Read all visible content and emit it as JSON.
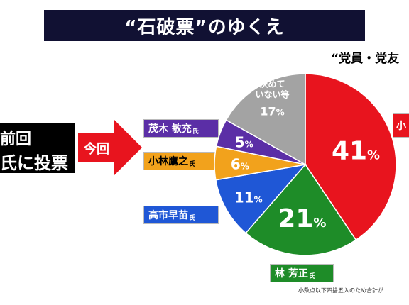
{
  "title": "“石破票”のゆくえ",
  "subtitle": "“党員・党友",
  "previous_vote": {
    "line1": "前回",
    "line2": "氏に投票"
  },
  "arrow_label": "今回",
  "candidate_labels": {
    "motegi": {
      "name": "茂木 敏充",
      "suffix": "氏"
    },
    "kobayashi": {
      "name": "小林鷹之",
      "suffix": "氏"
    },
    "takaichi": {
      "name": "高市早苗",
      "suffix": "氏"
    },
    "hayashi": {
      "name": "林 芳正",
      "suffix": "氏"
    },
    "koizumi": {
      "name": "小",
      "suffix": ""
    }
  },
  "footnote": "小数点以下四捨五入のため合計が",
  "colors": {
    "koizumi": "#e8141e",
    "hayashi": "#1e8c28",
    "takaichi": "#1f57d6",
    "kobayashi": "#f2a21c",
    "motegi": "#5b2ea6",
    "undecided": "#a3a3a3"
  },
  "chart_data": {
    "type": "pie",
    "title": "“石破票”のゆくえ",
    "slices": [
      {
        "key": "koizumi",
        "label": "小",
        "value": 41,
        "display": "41",
        "unit": "%"
      },
      {
        "key": "hayashi",
        "label": "林 芳正",
        "value": 21,
        "display": "21",
        "unit": "%"
      },
      {
        "key": "takaichi",
        "label": "高市早苗",
        "value": 11,
        "display": "11",
        "unit": "%"
      },
      {
        "key": "kobayashi",
        "label": "小林鷹之",
        "value": 6,
        "display": "6",
        "unit": "%"
      },
      {
        "key": "motegi",
        "label": "茂木 敏充",
        "value": 5,
        "display": "5",
        "unit": "%"
      },
      {
        "key": "undecided",
        "label": "決めていない等",
        "value": 17,
        "display": "17",
        "unit": "%",
        "inner_lines": [
          "決めて",
          "いない等"
        ]
      }
    ],
    "start": "top",
    "direction": "clockwise"
  }
}
